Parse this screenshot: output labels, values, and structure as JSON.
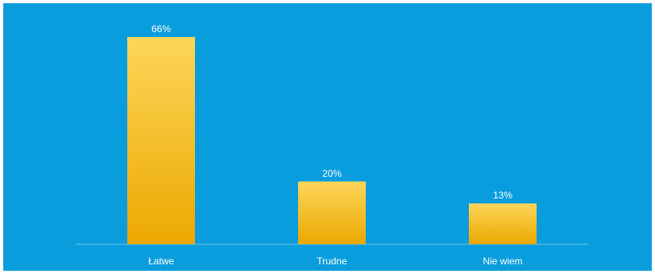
{
  "chart_data": {
    "type": "bar",
    "categories": [
      "Łatwe",
      "Trudne",
      "Nie wiem"
    ],
    "values": [
      66,
      20,
      13
    ],
    "value_labels": [
      "66%",
      "20%",
      "13%"
    ],
    "title": "",
    "xlabel": "",
    "ylabel": "",
    "ylim": [
      0,
      70
    ],
    "grid": false,
    "legend": "none"
  },
  "colors": {
    "background": "#0a9ddd",
    "bar_top": "#fdd65a",
    "bar_bottom": "#eba800",
    "axis": "#6cc3ea",
    "text": "#ffffff"
  }
}
